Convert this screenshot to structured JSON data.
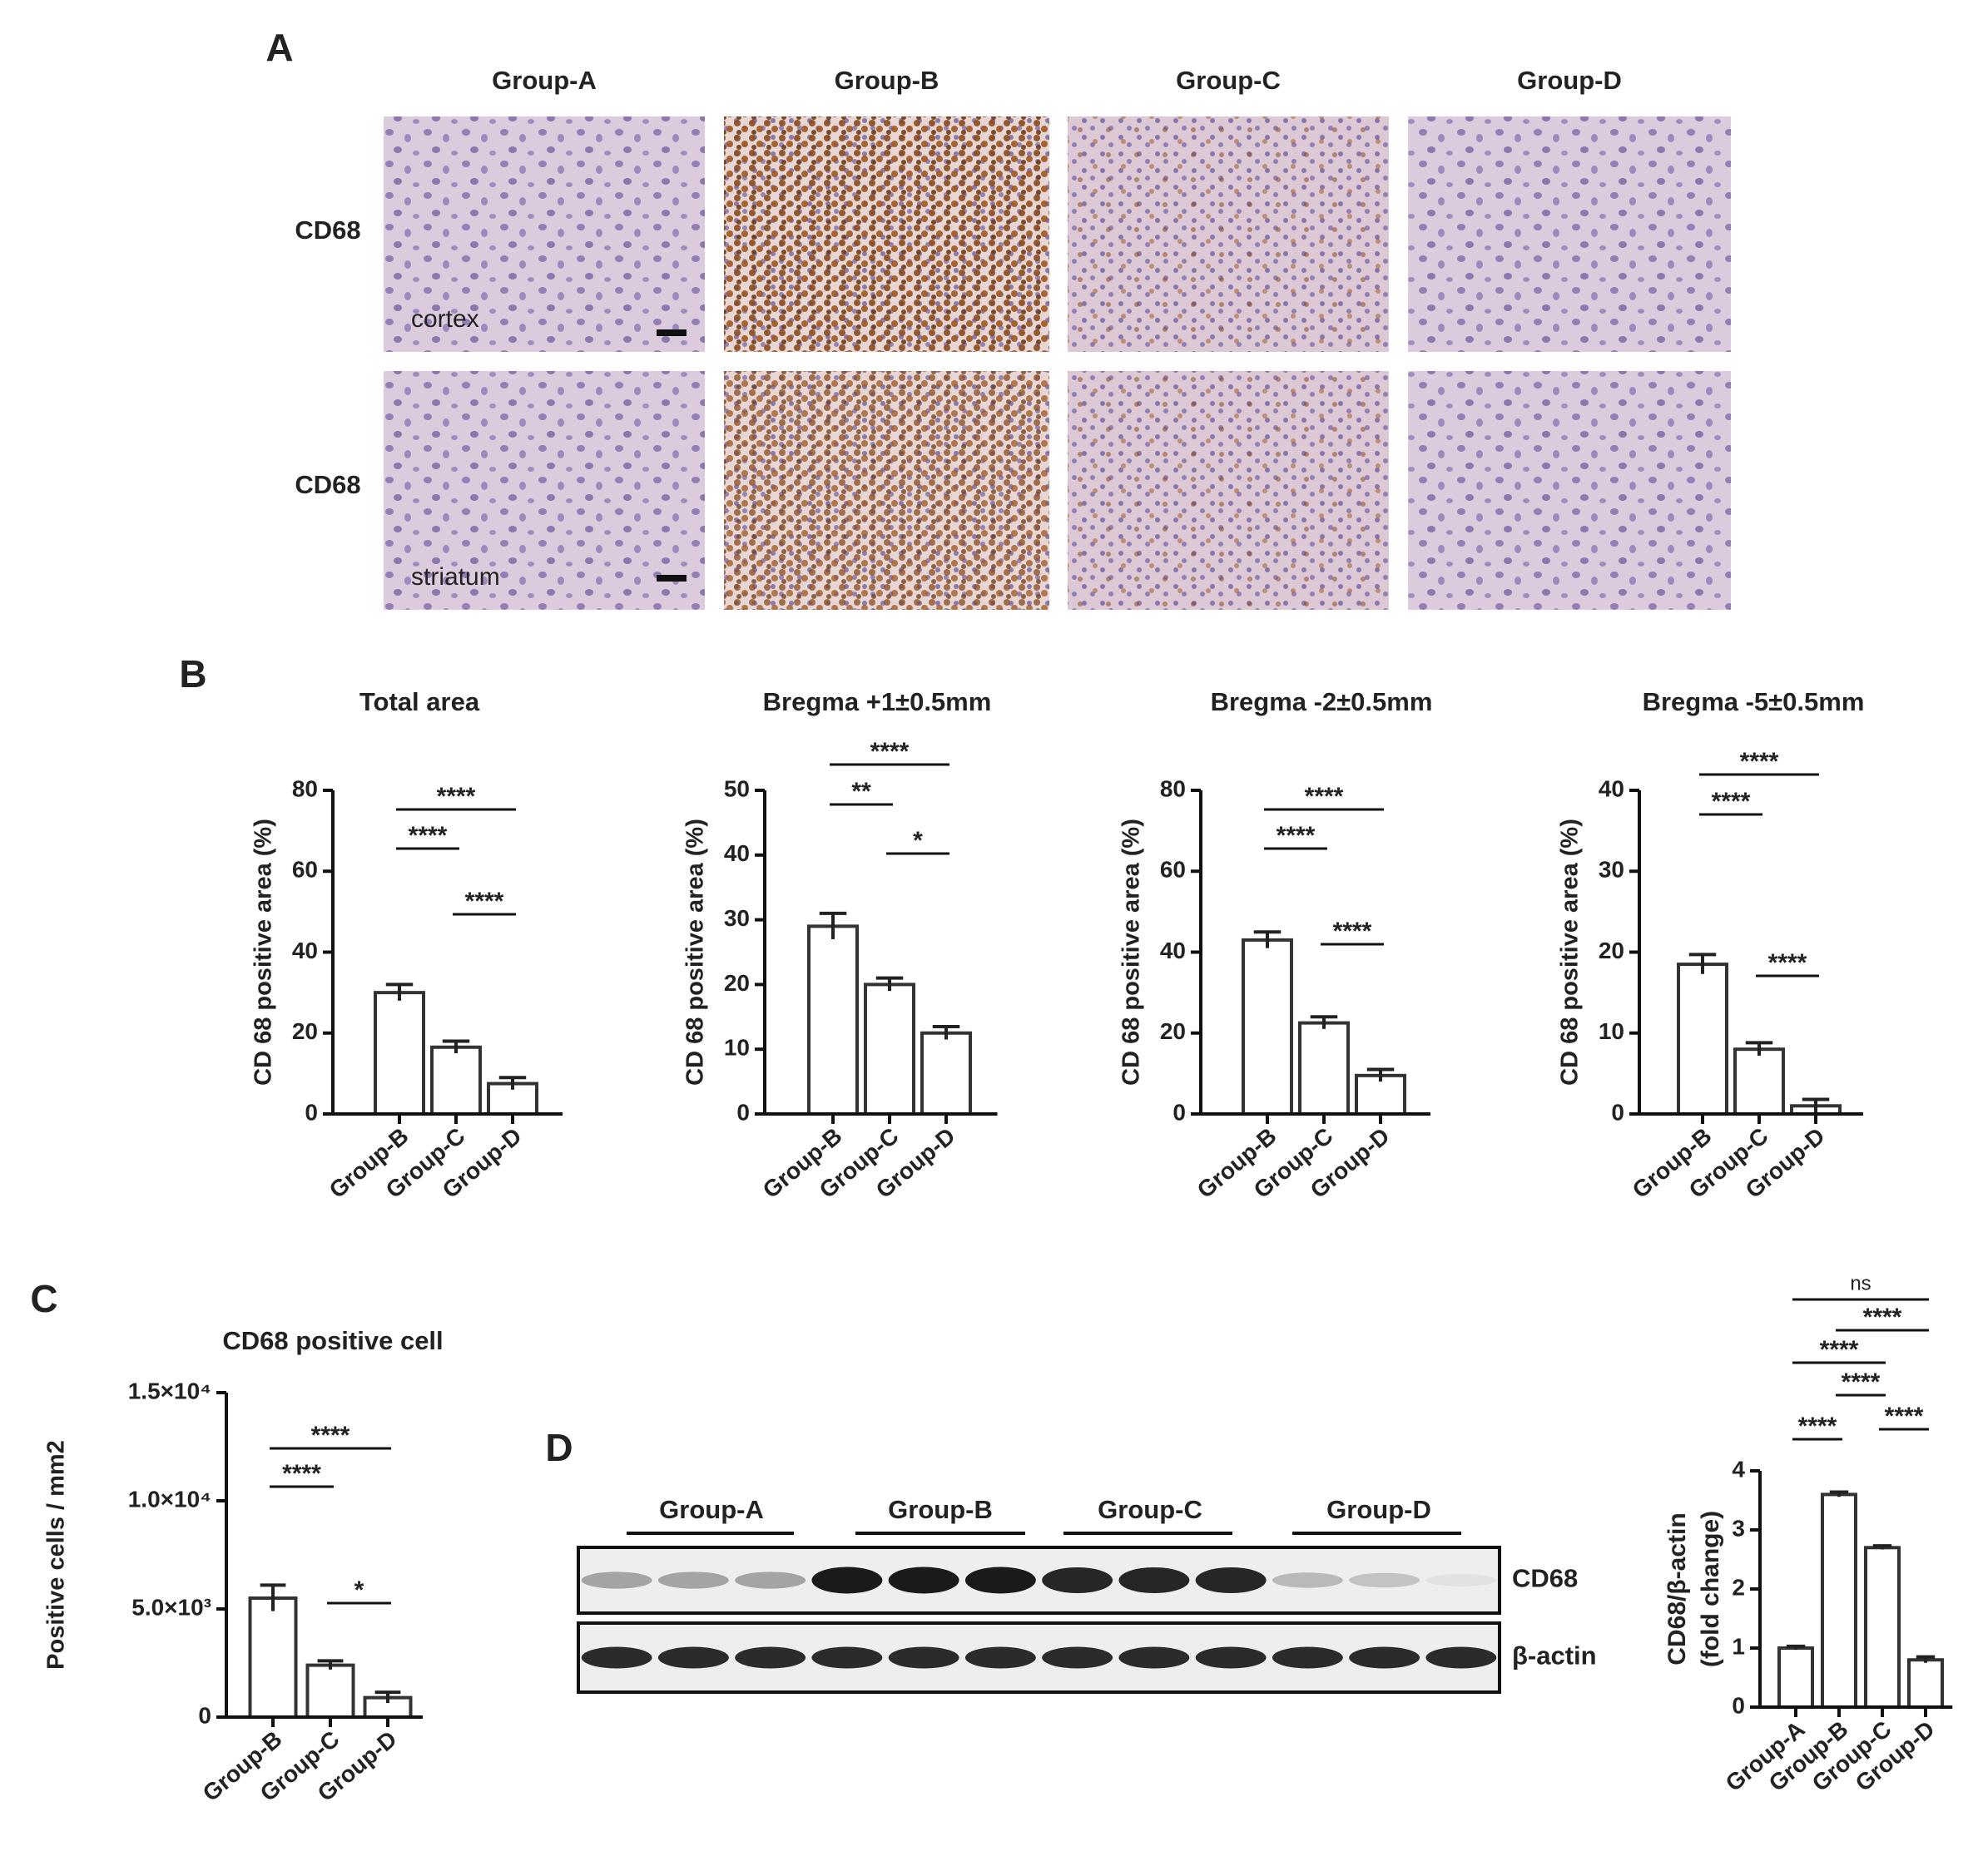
{
  "panel_labels": [
    "A",
    "B",
    "C",
    "D"
  ],
  "panel_a": {
    "columns": [
      "Group-A",
      "Group-B",
      "Group-C",
      "Group-D"
    ],
    "rows": [
      {
        "label": "CD68",
        "region": "cortex"
      },
      {
        "label": "CD68",
        "region": "striatum"
      }
    ]
  },
  "panel_d_blot": {
    "groups": [
      "Group-A",
      "Group-B",
      "Group-C",
      "Group-D"
    ],
    "bands": [
      "CD68",
      "β-actin"
    ]
  },
  "chart_data": [
    {
      "type": "bar",
      "title": "Total area",
      "y_label": "CD 68 positive area (%)",
      "categories": [
        "Group-B",
        "Group-C",
        "Group-D"
      ],
      "values": [
        30,
        16.5,
        7.5
      ],
      "errors": [
        2,
        1.5,
        1.5
      ],
      "ylim": [
        0,
        80
      ],
      "yticks": [
        0,
        20,
        40,
        60,
        80
      ],
      "brackets": [
        {
          "pair": [
            "Group-B",
            "Group-C"
          ],
          "label": "****"
        },
        {
          "pair": [
            "Group-B",
            "Group-D"
          ],
          "label": "****"
        },
        {
          "pair": [
            "Group-C",
            "Group-D"
          ],
          "label": "****"
        }
      ]
    },
    {
      "type": "bar",
      "title": "Bregma +1±0.5mm",
      "y_label": "CD 68 positive area (%)",
      "categories": [
        "Group-B",
        "Group-C",
        "Group-D"
      ],
      "values": [
        29,
        20,
        12.5
      ],
      "errors": [
        2,
        1,
        1
      ],
      "ylim": [
        0,
        50
      ],
      "yticks": [
        0,
        10,
        20,
        30,
        40,
        50
      ],
      "brackets": [
        {
          "pair": [
            "Group-B",
            "Group-C"
          ],
          "label": "**"
        },
        {
          "pair": [
            "Group-B",
            "Group-D"
          ],
          "label": "****"
        },
        {
          "pair": [
            "Group-C",
            "Group-D"
          ],
          "label": "*"
        }
      ]
    },
    {
      "type": "bar",
      "title": "Bregma -2±0.5mm",
      "y_label": "CD 68 positive area (%)",
      "categories": [
        "Group-B",
        "Group-C",
        "Group-D"
      ],
      "values": [
        43,
        22.5,
        9.5
      ],
      "errors": [
        2,
        1.5,
        1.5
      ],
      "ylim": [
        0,
        80
      ],
      "yticks": [
        0,
        20,
        40,
        60,
        80
      ],
      "brackets": [
        {
          "pair": [
            "Group-B",
            "Group-C"
          ],
          "label": "****"
        },
        {
          "pair": [
            "Group-B",
            "Group-D"
          ],
          "label": "****"
        },
        {
          "pair": [
            "Group-C",
            "Group-D"
          ],
          "label": "****"
        }
      ]
    },
    {
      "type": "bar",
      "title": "Bregma -5±0.5mm",
      "y_label": "CD 68 positive area (%)",
      "categories": [
        "Group-B",
        "Group-C",
        "Group-D"
      ],
      "values": [
        18.5,
        8,
        1
      ],
      "errors": [
        1.2,
        0.8,
        0.8
      ],
      "ylim": [
        0,
        40
      ],
      "yticks": [
        0,
        10,
        20,
        30,
        40
      ],
      "brackets": [
        {
          "pair": [
            "Group-B",
            "Group-C"
          ],
          "label": "****"
        },
        {
          "pair": [
            "Group-B",
            "Group-D"
          ],
          "label": "****"
        },
        {
          "pair": [
            "Group-C",
            "Group-D"
          ],
          "label": "****"
        }
      ]
    },
    {
      "type": "bar",
      "title": "CD68 positive cell",
      "y_label": "Positive cells / mm2",
      "categories": [
        "Group-B",
        "Group-C",
        "Group-D"
      ],
      "values": [
        5500,
        2400,
        900
      ],
      "errors": [
        600,
        200,
        250
      ],
      "ylim": [
        0,
        15000
      ],
      "yticks": [
        0,
        {
          "value": 5000,
          "label": "5.0×10³"
        },
        {
          "value": 10000,
          "label": "1.0×10⁴"
        },
        {
          "value": 15000,
          "label": "1.5×10⁴"
        }
      ],
      "brackets": [
        {
          "pair": [
            "Group-B",
            "Group-C"
          ],
          "label": "****"
        },
        {
          "pair": [
            "Group-B",
            "Group-D"
          ],
          "label": "****"
        },
        {
          "pair": [
            "Group-C",
            "Group-D"
          ],
          "label": "*"
        }
      ]
    },
    {
      "type": "bar",
      "y_label": [
        "CD68/β-actin",
        "(fold change)"
      ],
      "categories": [
        "Group-A",
        "Group-B",
        "Group-C",
        "Group-D"
      ],
      "values": [
        1,
        3.6,
        2.7,
        0.8
      ],
      "errors": [
        0.03,
        0.04,
        0.03,
        0.05
      ],
      "ylim": [
        0,
        4
      ],
      "yticks": [
        0,
        1,
        2,
        3,
        4
      ],
      "brackets": [
        {
          "pair": [
            "Group-A",
            "Group-B"
          ],
          "label": "****"
        },
        {
          "pair": [
            "Group-B",
            "Group-C"
          ],
          "label": "****"
        },
        {
          "pair": [
            "Group-C",
            "Group-D"
          ],
          "label": "****"
        },
        {
          "pair": [
            "Group-A",
            "Group-C"
          ],
          "label": "****"
        },
        {
          "pair": [
            "Group-B",
            "Group-D"
          ],
          "label": "****"
        },
        {
          "pair": [
            "Group-A",
            "Group-D"
          ],
          "label": "ns"
        }
      ]
    }
  ]
}
